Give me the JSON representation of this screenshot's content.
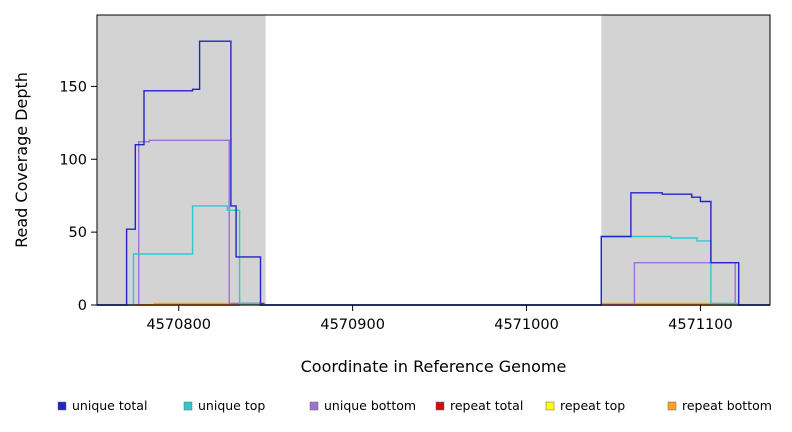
{
  "chart_data": {
    "type": "line",
    "title": "",
    "xlabel": "Coordinate in Reference Genome",
    "ylabel": "Read Coverage Depth",
    "xlim": [
      4570753,
      4571140
    ],
    "ylim": [
      0,
      199
    ],
    "xticks": [
      4570800,
      4570900,
      4571000,
      4571100
    ],
    "yticks": [
      0,
      50,
      100,
      150
    ],
    "grid": false,
    "legend_position": "bottom",
    "plot_bg": "#ffffff",
    "shaded_region_color": "#d3d3d3",
    "shaded_regions": [
      {
        "x0": 4570753,
        "x1": 4570850
      },
      {
        "x0": 4571043,
        "x1": 4571140
      }
    ],
    "series": [
      {
        "name": "unique total",
        "color": "#2323cd",
        "points": [
          [
            4570753,
            0
          ],
          [
            4570770,
            0
          ],
          [
            4570770,
            52
          ],
          [
            4570775,
            52
          ],
          [
            4570775,
            110
          ],
          [
            4570780,
            110
          ],
          [
            4570780,
            147
          ],
          [
            4570808,
            147
          ],
          [
            4570808,
            148
          ],
          [
            4570812,
            148
          ],
          [
            4570812,
            181
          ],
          [
            4570830,
            181
          ],
          [
            4570830,
            68
          ],
          [
            4570833,
            68
          ],
          [
            4570833,
            33
          ],
          [
            4570847,
            33
          ],
          [
            4570847,
            0
          ],
          [
            4571043,
            0
          ],
          [
            4571043,
            47
          ],
          [
            4571060,
            47
          ],
          [
            4571060,
            77
          ],
          [
            4571078,
            77
          ],
          [
            4571078,
            76
          ],
          [
            4571095,
            76
          ],
          [
            4571095,
            74
          ],
          [
            4571100,
            74
          ],
          [
            4571100,
            71
          ],
          [
            4571106,
            71
          ],
          [
            4571106,
            29
          ],
          [
            4571122,
            29
          ],
          [
            4571122,
            0
          ],
          [
            4571140,
            0
          ]
        ]
      },
      {
        "name": "unique top",
        "color": "#2fc9cd",
        "points": [
          [
            4570753,
            0
          ],
          [
            4570774,
            0
          ],
          [
            4570774,
            35
          ],
          [
            4570808,
            35
          ],
          [
            4570808,
            68
          ],
          [
            4570828,
            68
          ],
          [
            4570828,
            65
          ],
          [
            4570835,
            65
          ],
          [
            4570835,
            1
          ],
          [
            4570847,
            1
          ],
          [
            4570847,
            0
          ],
          [
            4571043,
            0
          ],
          [
            4571043,
            47
          ],
          [
            4571083,
            47
          ],
          [
            4571083,
            46
          ],
          [
            4571098,
            46
          ],
          [
            4571098,
            44
          ],
          [
            4571106,
            44
          ],
          [
            4571106,
            1
          ],
          [
            4571121,
            1
          ],
          [
            4571121,
            0
          ],
          [
            4571140,
            0
          ]
        ]
      },
      {
        "name": "unique bottom",
        "color": "#a06fd2",
        "points": [
          [
            4570753,
            0
          ],
          [
            4570777,
            0
          ],
          [
            4570777,
            112
          ],
          [
            4570783,
            112
          ],
          [
            4570783,
            113
          ],
          [
            4570829,
            113
          ],
          [
            4570829,
            1
          ],
          [
            4570846,
            1
          ],
          [
            4570846,
            0
          ],
          [
            4571062,
            0
          ],
          [
            4571062,
            29
          ],
          [
            4571120,
            29
          ],
          [
            4571120,
            0
          ],
          [
            4571140,
            0
          ]
        ]
      },
      {
        "name": "repeat total",
        "color": "#cd1111",
        "points": [
          [
            4570753,
            0
          ],
          [
            4570835,
            0
          ],
          [
            4570835,
            1
          ],
          [
            4570849,
            1
          ],
          [
            4570849,
            0
          ],
          [
            4571140,
            0
          ]
        ]
      },
      {
        "name": "repeat top",
        "color": "#ffff00",
        "points": [
          [
            4570753,
            0
          ],
          [
            4571140,
            0
          ]
        ]
      },
      {
        "name": "repeat bottom",
        "color": "#ffa021",
        "points": [
          [
            4570753,
            0
          ],
          [
            4570786,
            0
          ],
          [
            4570786,
            1
          ],
          [
            4570835,
            1
          ],
          [
            4570835,
            0
          ],
          [
            4571043,
            0
          ],
          [
            4571043,
            1
          ],
          [
            4571117,
            1
          ],
          [
            4571117,
            0
          ],
          [
            4571140,
            0
          ]
        ]
      }
    ]
  }
}
